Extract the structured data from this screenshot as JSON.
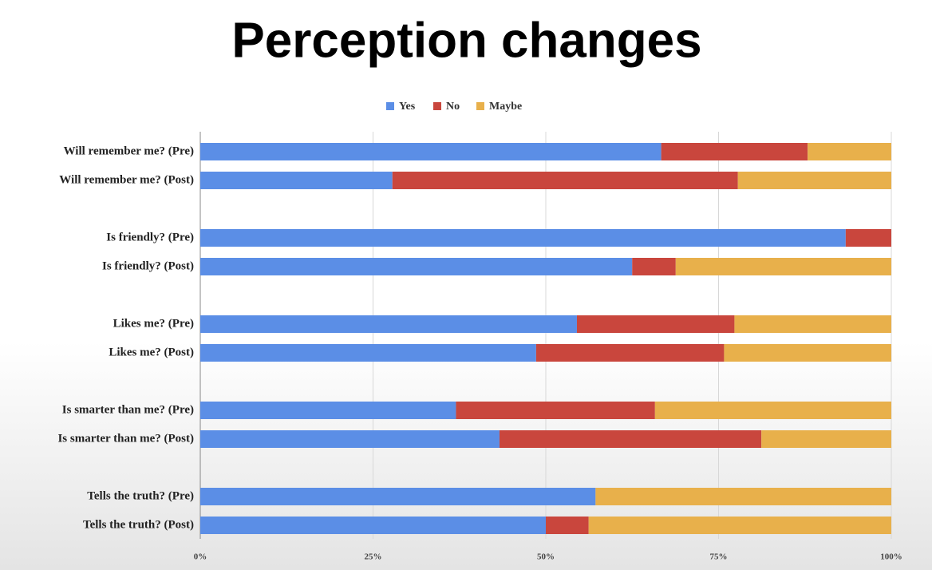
{
  "chart_data": {
    "type": "stacked-bar-horizontal",
    "title": "Perception changes",
    "categories": [
      "Will remember me? (Pre)",
      "Will remember me? (Post)",
      null,
      "Is friendly? (Pre)",
      "Is friendly? (Post)",
      null,
      "Likes me? (Pre)",
      "Likes me? (Post)",
      null,
      "Is smarter than me? (Pre)",
      "Is smarter than me? (Post)",
      null,
      "Tells the truth? (Pre)",
      "Tells the truth? (Post)"
    ],
    "series": [
      {
        "name": "Yes",
        "color": "#5b8ee6",
        "values": [
          66.7,
          27.8,
          null,
          93.4,
          62.5,
          null,
          54.5,
          48.6,
          null,
          37.0,
          43.3,
          null,
          57.2,
          50.0
        ]
      },
      {
        "name": "No",
        "color": "#c9463d",
        "values": [
          21.2,
          50.0,
          null,
          6.6,
          6.3,
          null,
          22.8,
          27.2,
          null,
          28.8,
          37.9,
          null,
          0,
          6.2
        ]
      },
      {
        "name": "Maybe",
        "color": "#e8b04b",
        "values": [
          12.1,
          22.2,
          null,
          0,
          31.2,
          null,
          22.7,
          24.2,
          null,
          34.2,
          18.8,
          null,
          42.8,
          43.8
        ]
      }
    ],
    "xlim": [
      0,
      100
    ],
    "xticks": [
      {
        "value": 0,
        "label": "0%"
      },
      {
        "value": 25,
        "label": "25%"
      },
      {
        "value": 50,
        "label": "50%"
      },
      {
        "value": 75,
        "label": "75%"
      },
      {
        "value": 100,
        "label": "100%"
      }
    ],
    "grid": true,
    "legend": "top"
  }
}
